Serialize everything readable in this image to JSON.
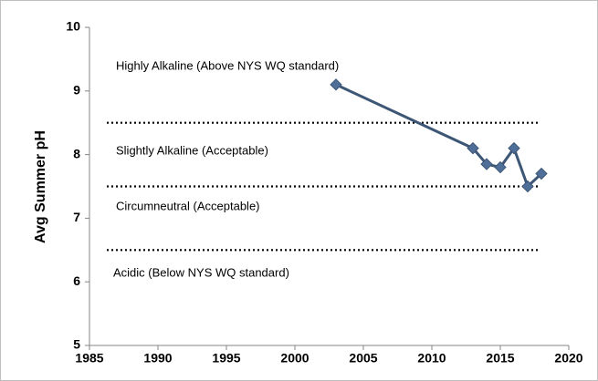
{
  "chart_data": {
    "type": "line",
    "y_axis_label": "Avg Summer pH",
    "x": [
      2003,
      2013,
      2014,
      2015,
      2016,
      2017,
      2018
    ],
    "series": [
      {
        "color": "#3d5675",
        "marker_color": "#4f6f99",
        "values": [
          9.1,
          8.1,
          7.85,
          7.8,
          8.1,
          7.5,
          7.7
        ]
      }
    ],
    "xlim": [
      1985,
      2020
    ],
    "xticks": [
      1985,
      1990,
      1995,
      2000,
      2005,
      2010,
      2015,
      2020
    ],
    "ylim": [
      5,
      10
    ],
    "yticks": [
      5,
      6,
      7,
      8,
      9,
      10
    ],
    "reference_lines": [
      8.5,
      7.5,
      6.5
    ],
    "annotations": [
      "Highly Alkaline (Above NYS WQ standard)",
      "Slightly Alkaline (Acceptable)",
      "Circumneutral (Acceptable)",
      "Acidic (Below NYS WQ standard)"
    ]
  }
}
